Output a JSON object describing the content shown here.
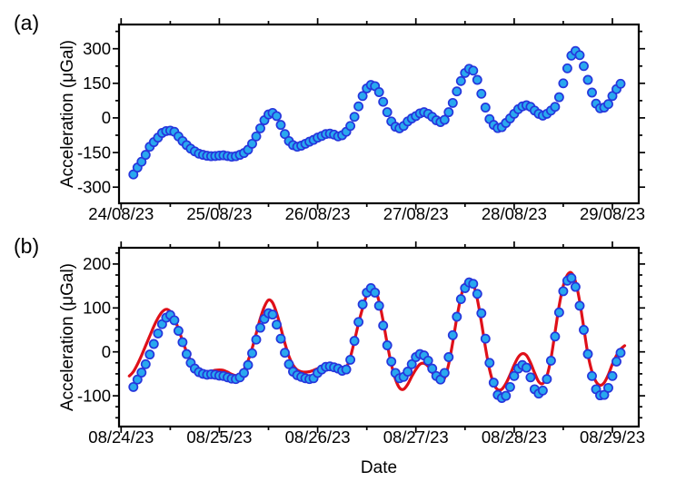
{
  "figure": {
    "background": "#ffffff",
    "xlabel": "Date"
  },
  "colors": {
    "marker_fill": "#29A8EF",
    "marker_edge": "#2636DC",
    "model_line": "#DF1019",
    "axis": "#000000"
  },
  "style": {
    "marker_radius": 4.6,
    "model_line_width": 3.2,
    "frame_width": 2.2,
    "tick_width": 1.7,
    "major_tick_len": 7,
    "minor_tick_len": 4
  },
  "chart_data": [
    {
      "type": "scatter",
      "tag": "(a)",
      "title": "",
      "ylabel": "Acceleration (μGal)",
      "xlabel": "",
      "x_tick_labels": [
        "24/08/23",
        "25/08/23",
        "26/08/23",
        "27/08/23",
        "28/08/23",
        "29/08/23"
      ],
      "x_major_days": [
        0,
        1,
        2,
        3,
        4,
        5
      ],
      "x_minor_days": [
        0.5,
        1.5,
        2.5,
        3.5,
        4.5
      ],
      "xlim_days": [
        -0.021,
        5.268
      ],
      "ylim": [
        -370,
        405
      ],
      "y_ticks": [
        300,
        150,
        0,
        -150,
        -300
      ],
      "y_minor_ticks": [
        375,
        225,
        75,
        -75,
        -225
      ],
      "grid": false,
      "legend": null,
      "series": [
        {
          "name": "measured gravity acceleration",
          "kind": "scatter",
          "x_unit": "hours since 24/08/23 00:00",
          "x_start_hour": 3,
          "x_step_hours": 1,
          "values": [
            -245,
            -215,
            -190,
            -160,
            -125,
            -105,
            -85,
            -65,
            -57,
            -55,
            -60,
            -80,
            -100,
            -118,
            -133,
            -145,
            -155,
            -160,
            -164,
            -166,
            -165,
            -163,
            -162,
            -165,
            -168,
            -166,
            -160,
            -152,
            -138,
            -112,
            -80,
            -45,
            -10,
            15,
            22,
            8,
            -30,
            -70,
            -100,
            -118,
            -125,
            -120,
            -112,
            -103,
            -95,
            -85,
            -78,
            -70,
            -68,
            -72,
            -80,
            -75,
            -60,
            -35,
            5,
            50,
            95,
            128,
            143,
            138,
            112,
            70,
            25,
            -15,
            -38,
            -45,
            -35,
            -15,
            -2,
            8,
            20,
            25,
            18,
            5,
            -10,
            -18,
            -8,
            25,
            65,
            115,
            160,
            195,
            213,
            205,
            165,
            105,
            45,
            -5,
            -30,
            -44,
            -40,
            -22,
            -2,
            18,
            38,
            50,
            55,
            48,
            32,
            18,
            10,
            18,
            32,
            48,
            90,
            150,
            215,
            270,
            290,
            272,
            225,
            165,
            110,
            62,
            42,
            45,
            60,
            95,
            125,
            148
          ]
        }
      ]
    },
    {
      "type": "scatter+line",
      "tag": "(b)",
      "title": "",
      "ylabel": "Acceleration (μGal)",
      "xlabel": "Date",
      "x_tick_labels": [
        "08/24/23",
        "08/25/23",
        "08/26/23",
        "08/27/23",
        "08/28/23",
        "08/29/23"
      ],
      "x_major_days": [
        0,
        1,
        2,
        3,
        4,
        5
      ],
      "x_minor_days": [
        0.5,
        1.5,
        2.5,
        3.5,
        4.5
      ],
      "xlim_days": [
        -0.021,
        5.268
      ],
      "ylim": [
        -170,
        237
      ],
      "y_ticks": [
        200,
        100,
        0,
        -100
      ],
      "y_minor_ticks": [
        225,
        175,
        150,
        125,
        75,
        50,
        25,
        -25,
        -50,
        -75,
        -125,
        -150
      ],
      "grid": false,
      "legend": null,
      "series": [
        {
          "name": "measured acceleration (detrended)",
          "kind": "scatter",
          "x_unit": "hours since 08/24/23 00:00",
          "x_start_hour": 3,
          "x_step_hours": 1,
          "values": [
            -80,
            -63,
            -47,
            -28,
            -6,
            18,
            42,
            63,
            78,
            84,
            72,
            48,
            22,
            -5,
            -25,
            -38,
            -46,
            -50,
            -52,
            -51,
            -52,
            -54,
            -55,
            -58,
            -61,
            -62,
            -58,
            -48,
            -30,
            -3,
            28,
            55,
            75,
            88,
            85,
            62,
            30,
            -2,
            -28,
            -45,
            -53,
            -57,
            -60,
            -62,
            -60,
            -48,
            -40,
            -34,
            -33,
            -35,
            -38,
            -43,
            -40,
            -18,
            25,
            68,
            108,
            135,
            145,
            135,
            105,
            60,
            15,
            -22,
            -48,
            -60,
            -57,
            -45,
            -28,
            -12,
            -5,
            -8,
            -20,
            -38,
            -55,
            -63,
            -48,
            -12,
            38,
            80,
            120,
            145,
            158,
            155,
            132,
            88,
            30,
            -25,
            -70,
            -98,
            -105,
            -100,
            -80,
            -55,
            -38,
            -30,
            -36,
            -58,
            -85,
            -95,
            -88,
            -62,
            -20,
            35,
            90,
            138,
            162,
            168,
            148,
            105,
            50,
            -5,
            -55,
            -85,
            -99,
            -98,
            -82,
            -55,
            -22,
            -2
          ]
        },
        {
          "name": "tidal model fit",
          "kind": "line",
          "x_unit": "hours since 08/24/23 00:00",
          "x_start_hour": 2,
          "x_step_hours": 1,
          "values": [
            -55,
            -45,
            -28,
            -8,
            14,
            36,
            58,
            77,
            91,
            97,
            92,
            76,
            52,
            25,
            0,
            -20,
            -33,
            -41,
            -44,
            -45,
            -44,
            -42,
            -41,
            -42,
            -46,
            -51,
            -54,
            -51,
            -40,
            -20,
            8,
            42,
            76,
            103,
            118,
            112,
            88,
            55,
            20,
            -10,
            -30,
            -41,
            -45,
            -46,
            -45,
            -42,
            -38,
            -35,
            -34,
            -36,
            -39,
            -42,
            -44,
            -36,
            -12,
            25,
            65,
            100,
            130,
            144,
            141,
            115,
            70,
            18,
            -28,
            -62,
            -82,
            -85,
            -74,
            -56,
            -40,
            -28,
            -26,
            -33,
            -47,
            -62,
            -70,
            -60,
            -28,
            22,
            78,
            125,
            155,
            166,
            155,
            120,
            68,
            10,
            -40,
            -72,
            -86,
            -85,
            -72,
            -52,
            -30,
            -12,
            -4,
            -8,
            -25,
            -48,
            -68,
            -72,
            -55,
            -15,
            45,
            105,
            150,
            175,
            180,
            160,
            115,
            55,
            -5,
            -45,
            -68,
            -76,
            -70,
            -52,
            -28,
            -8,
            6,
            14
          ]
        }
      ]
    }
  ]
}
